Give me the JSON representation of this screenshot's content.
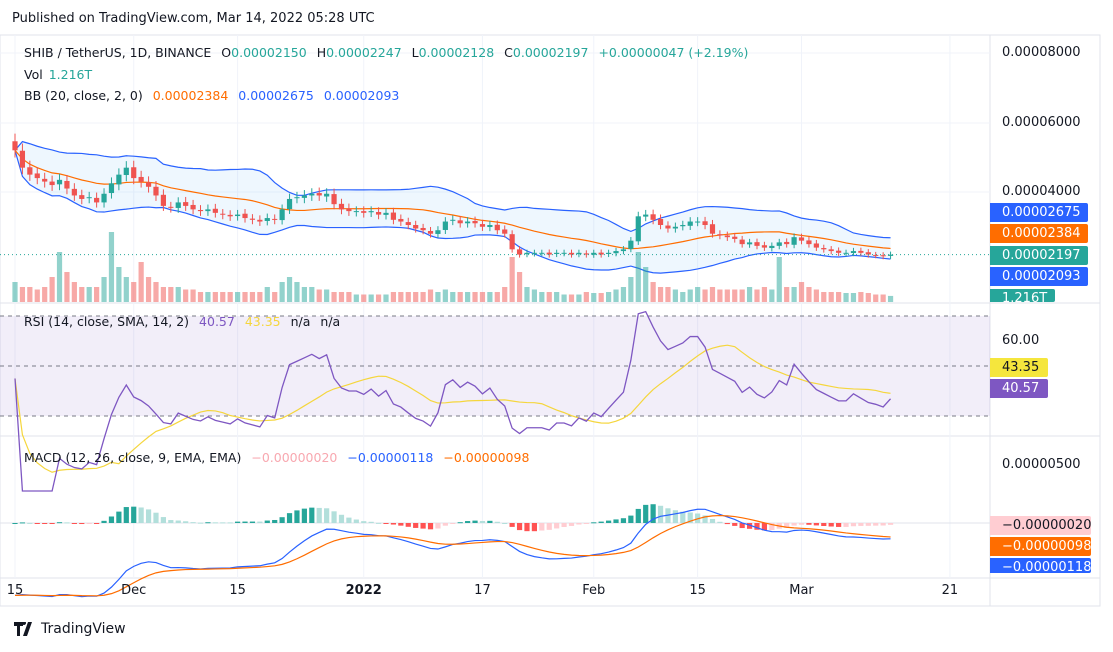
{
  "published": "Published on TradingView.com, Mar 14, 2022 05:28 UTC",
  "legend": {
    "symbol": "SHIB / TetherUS, 1D, BINANCE",
    "o_label": "O",
    "open": "0.00002150",
    "h_label": "H",
    "high": "0.00002247",
    "l_label": "L",
    "low": "0.00002128",
    "c_label": "C",
    "close": "0.00002197",
    "change": "+0.00000047 (+2.19%)",
    "vol_label": "Vol",
    "vol": "1.216T",
    "bb_label": "BB (20, close, 2, 0)",
    "bb_basis": "0.00002384",
    "bb_upper": "0.00002675",
    "bb_lower": "0.00002093",
    "rsi_label": "RSI (14, close, SMA, 14, 2)",
    "rsi": "40.57",
    "rsi_ma": "43.35",
    "rsi_na1": "n/a",
    "rsi_na2": "n/a",
    "macd_label": "MACD (12, 26, close, 9, EMA, EMA)",
    "macd_hist": "−0.00000020",
    "macd": "−0.00000118",
    "macd_signal": "−0.00000098"
  },
  "price_axis": {
    "ticks": [
      "0.00008000",
      "0.00006000",
      "0.00004000"
    ],
    "badges": {
      "upper": "0.00002675",
      "basis": "0.00002384",
      "close": "0.00002197",
      "lower": "0.00002093",
      "vol": "1.216T"
    }
  },
  "rsi_axis": {
    "ticks": [
      "60.00"
    ],
    "badges": {
      "ma": "43.35",
      "rsi": "40.57"
    }
  },
  "macd_axis": {
    "ticks": [
      "0.00000500"
    ],
    "badges": {
      "hist": "−0.00000020",
      "signal": "−0.00000098",
      "macd": "−0.00000118"
    }
  },
  "time_axis": {
    "ticks": [
      {
        "label": "15",
        "day": 0
      },
      {
        "label": "Dec",
        "day": 16
      },
      {
        "label": "15",
        "day": 30
      },
      {
        "label": "2022",
        "day": 47,
        "bold": true
      },
      {
        "label": "17",
        "day": 63
      },
      {
        "label": "Feb",
        "day": 78
      },
      {
        "label": "15",
        "day": 92
      },
      {
        "label": "Mar",
        "day": 106
      },
      {
        "label": "21",
        "day": 126
      }
    ]
  },
  "footer": {
    "brand": "TradingView"
  },
  "colors": {
    "up": "#26a69a",
    "down": "#ef5350",
    "bb_band": "#2962ff",
    "bb_basis": "#ff6d00",
    "rsi": "#7e57c2",
    "rsi_ma": "#f5d63d",
    "macd": "#2962ff",
    "signal": "#ff6d00"
  },
  "chart_data": {
    "type": "candlestick",
    "title": "SHIB / TetherUS, 1D, BINANCE",
    "x_start": "2021-11-15",
    "x_end": "2022-03-13",
    "interval": "1D",
    "close_unit": "1e-8 USDT",
    "closes": [
      5200,
      4700,
      4500,
      4400,
      4300,
      4200,
      4350,
      4100,
      3900,
      3800,
      3850,
      3700,
      3950,
      4250,
      4500,
      4700,
      4400,
      4300,
      4150,
      3900,
      3600,
      3550,
      3700,
      3600,
      3500,
      3450,
      3500,
      3400,
      3350,
      3300,
      3350,
      3250,
      3200,
      3150,
      3250,
      3200,
      3500,
      3800,
      3850,
      3900,
      3950,
      3900,
      3950,
      3650,
      3500,
      3450,
      3450,
      3400,
      3450,
      3350,
      3400,
      3200,
      3150,
      3050,
      2950,
      2900,
      2800,
      2900,
      3150,
      3200,
      3100,
      3150,
      3100,
      3000,
      3050,
      2900,
      2800,
      2350,
      2200,
      2250,
      2250,
      2250,
      2200,
      2250,
      2250,
      2200,
      2250,
      2200,
      2250,
      2200,
      2250,
      2300,
      2350,
      2600,
      3300,
      3350,
      3200,
      3050,
      2950,
      3000,
      3050,
      3150,
      3150,
      3050,
      2800,
      2750,
      2700,
      2650,
      2500,
      2550,
      2450,
      2400,
      2450,
      2550,
      2500,
      2700,
      2600,
      2500,
      2400,
      2350,
      2300,
      2250,
      2250,
      2300,
      2250,
      2200,
      2180,
      2150,
      2197
    ],
    "volume_unit": "T",
    "volumes": [
      4,
      3,
      3,
      2.5,
      3,
      5,
      10,
      6,
      4,
      3,
      3,
      3,
      5,
      14,
      7,
      5,
      4,
      8,
      5,
      4,
      3,
      3,
      3,
      2.5,
      2.5,
      2,
      2,
      2,
      2,
      2,
      2,
      2,
      2,
      2,
      3,
      2,
      4,
      5,
      4,
      3,
      3,
      2.5,
      2.5,
      2,
      2,
      2,
      1.5,
      1.5,
      1.5,
      1.5,
      1.5,
      2,
      2,
      2,
      2,
      2,
      2.5,
      2,
      2.5,
      2,
      2,
      2,
      2,
      2,
      2,
      2,
      3,
      9,
      6,
      3,
      2.5,
      2,
      2,
      2,
      1.5,
      1.5,
      1.5,
      2,
      1.8,
      1.8,
      2,
      2.5,
      3,
      5,
      10,
      7,
      4,
      3,
      3,
      2.5,
      2,
      2.5,
      3,
      2.5,
      3,
      2.5,
      2.5,
      2.5,
      2.5,
      3,
      2.5,
      3,
      2.5,
      9,
      3,
      3,
      4,
      3,
      2.5,
      2,
      2,
      2,
      1.8,
      1.8,
      2,
      1.8,
      1.5,
      1.5,
      1.216
    ],
    "price_ylim": [
      1.55e-05,
      8.2e-05
    ],
    "indicators": {
      "bb": [
        20,
        2
      ],
      "rsi": [
        14,
        14
      ],
      "macd": [
        12,
        26,
        9
      ]
    }
  }
}
